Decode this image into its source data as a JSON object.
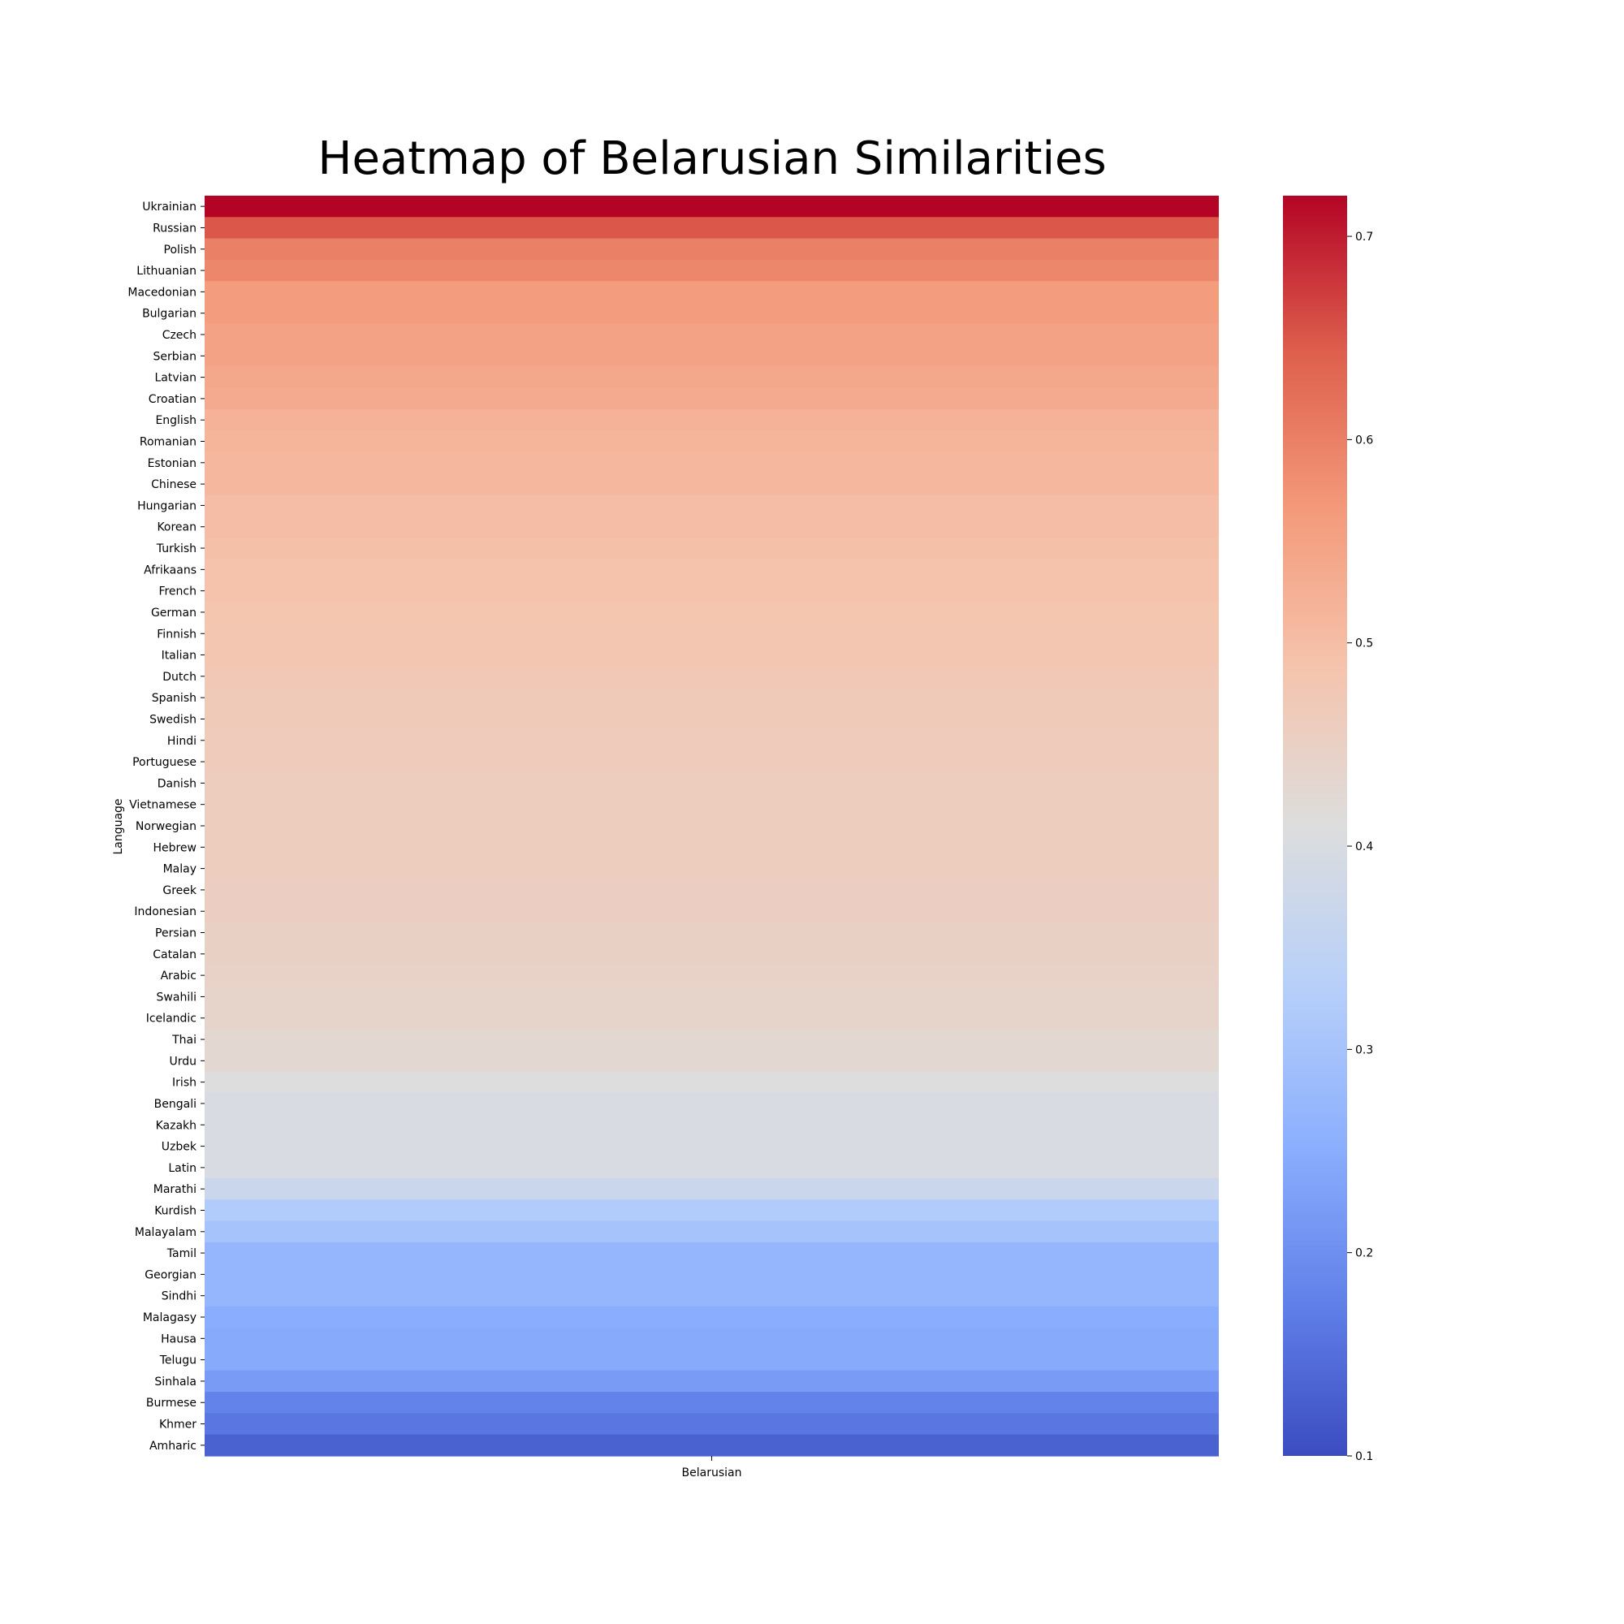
{
  "chart_data": {
    "type": "heatmap",
    "title": "Heatmap of Belarusian Similarities",
    "xlabel": "",
    "ylabel": "Language",
    "x_categories": [
      "Belarusian"
    ],
    "y_categories": [
      "Ukrainian",
      "Russian",
      "Polish",
      "Lithuanian",
      "Macedonian",
      "Bulgarian",
      "Czech",
      "Serbian",
      "Latvian",
      "Croatian",
      "English",
      "Romanian",
      "Estonian",
      "Chinese",
      "Hungarian",
      "Korean",
      "Turkish",
      "Afrikaans",
      "French",
      "German",
      "Finnish",
      "Italian",
      "Dutch",
      "Spanish",
      "Swedish",
      "Hindi",
      "Portuguese",
      "Danish",
      "Vietnamese",
      "Norwegian",
      "Hebrew",
      "Malay",
      "Greek",
      "Indonesian",
      "Persian",
      "Catalan",
      "Arabic",
      "Swahili",
      "Icelandic",
      "Thai",
      "Urdu",
      "Irish",
      "Bengali",
      "Kazakh",
      "Uzbek",
      "Latin",
      "Marathi",
      "Kurdish",
      "Malayalam",
      "Tamil",
      "Georgian",
      "Sindhi",
      "Malagasy",
      "Hausa",
      "Telugu",
      "Sinhala",
      "Burmese",
      "Khmer",
      "Amharic"
    ],
    "values": [
      0.72,
      0.65,
      0.6,
      0.59,
      0.56,
      0.56,
      0.55,
      0.55,
      0.54,
      0.535,
      0.52,
      0.515,
      0.51,
      0.51,
      0.5,
      0.5,
      0.495,
      0.49,
      0.49,
      0.485,
      0.48,
      0.48,
      0.475,
      0.47,
      0.47,
      0.465,
      0.465,
      0.46,
      0.46,
      0.46,
      0.46,
      0.46,
      0.455,
      0.455,
      0.45,
      0.45,
      0.445,
      0.44,
      0.44,
      0.43,
      0.43,
      0.41,
      0.4,
      0.4,
      0.4,
      0.4,
      0.37,
      0.32,
      0.3,
      0.27,
      0.27,
      0.27,
      0.25,
      0.245,
      0.245,
      0.22,
      0.18,
      0.16,
      0.13
    ],
    "colorbar": {
      "min": 0.1,
      "max": 0.72,
      "ticks": [
        "0.1",
        "0.2",
        "0.3",
        "0.4",
        "0.5",
        "0.6",
        "0.7"
      ],
      "colormap": "coolwarm"
    },
    "grid": false
  }
}
